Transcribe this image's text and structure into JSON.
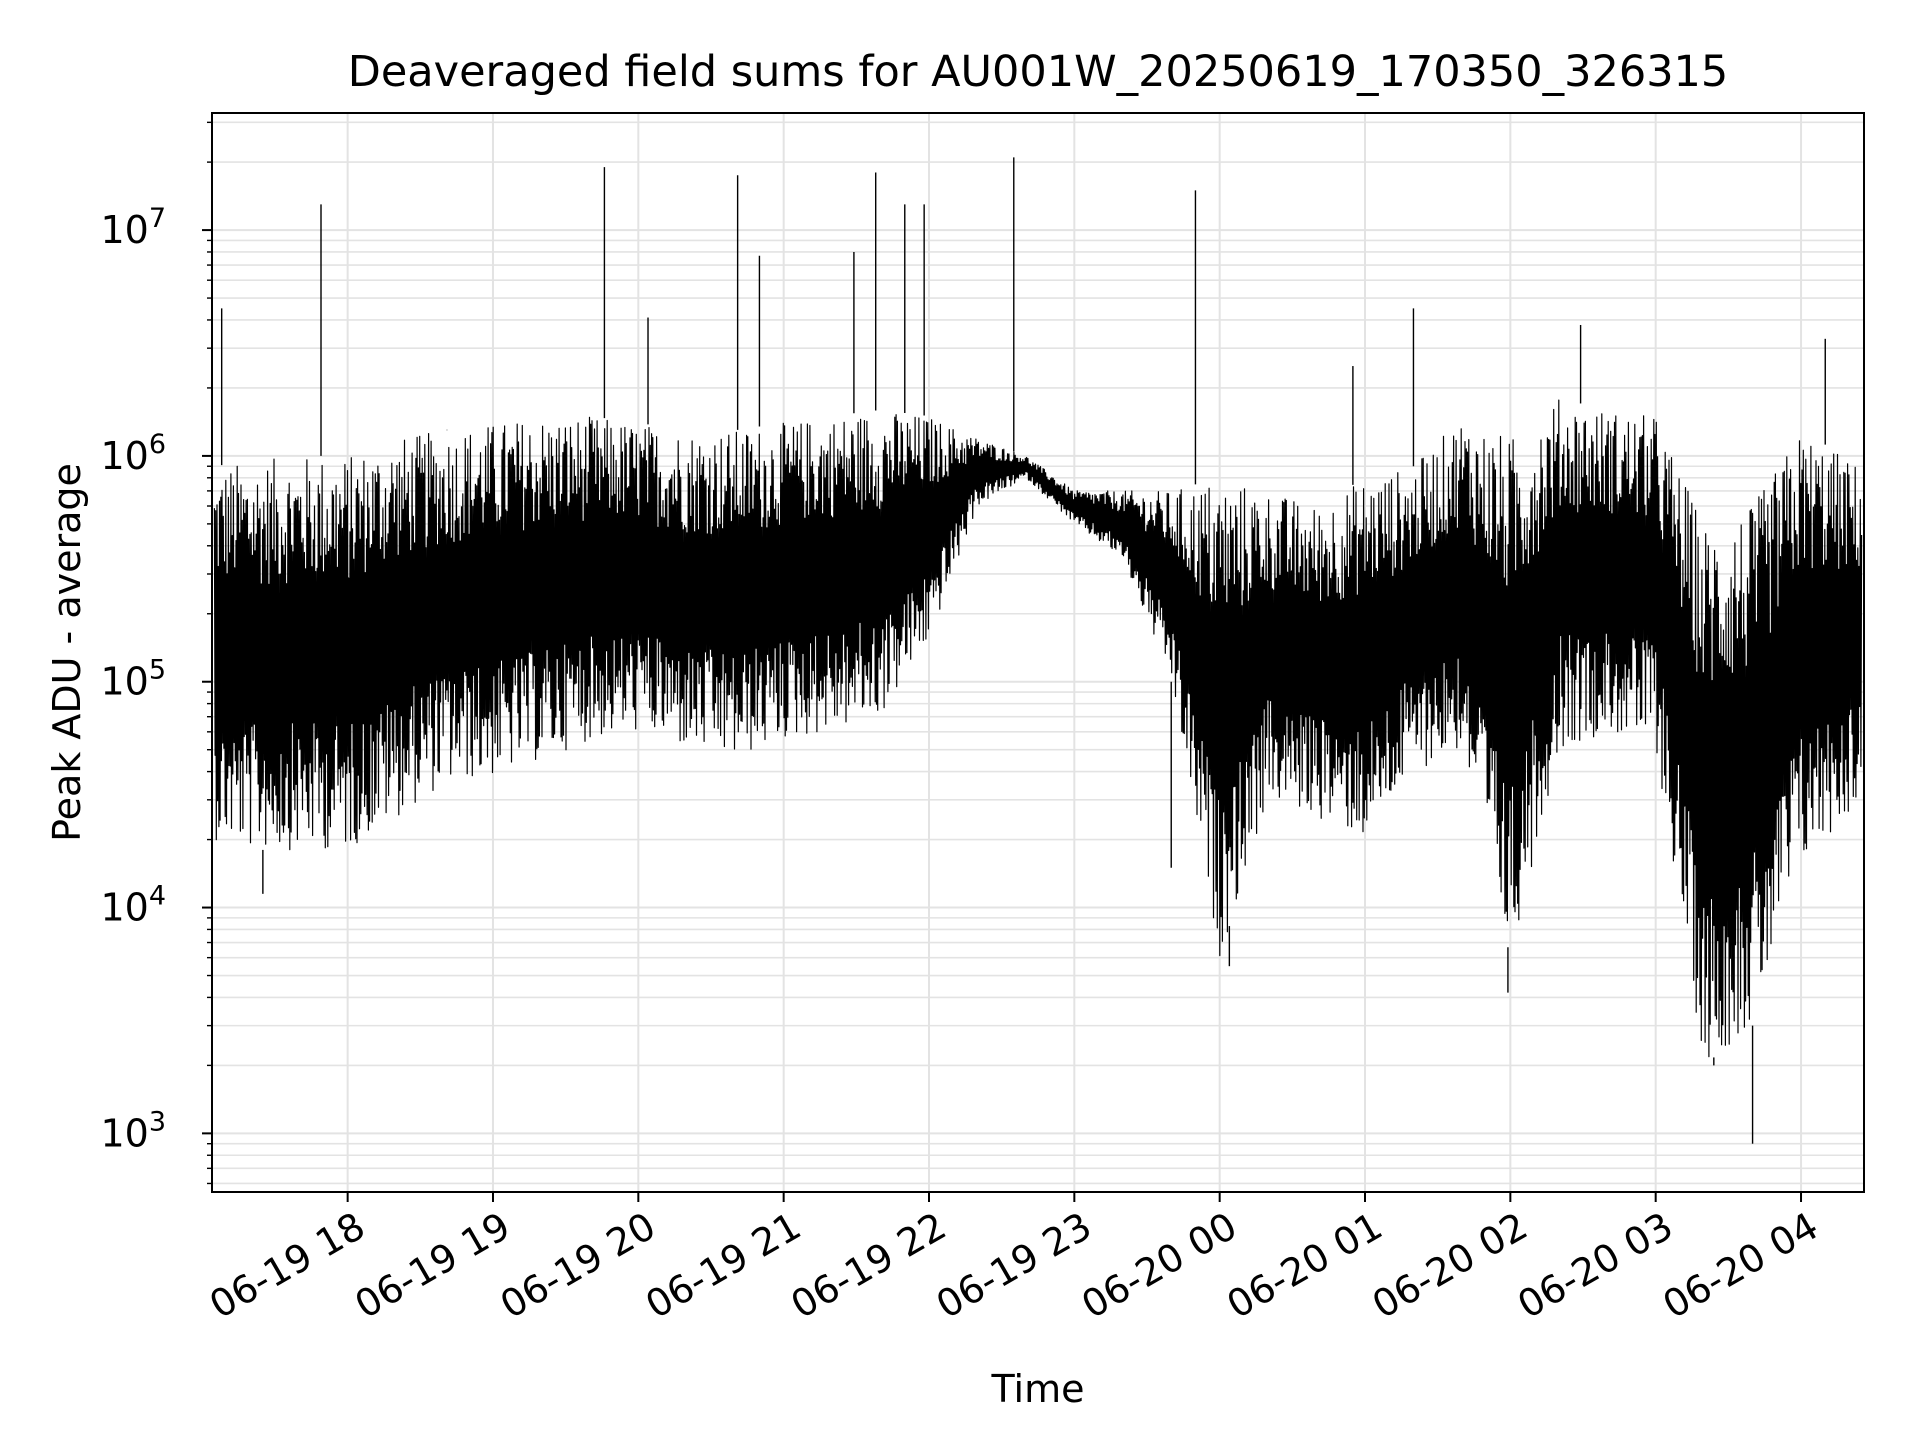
{
  "chart_data": {
    "type": "line",
    "title": "Deaveraged field sums for AU001W_20250619_170350_326315",
    "xlabel": "Time",
    "ylabel": "Peak ADU - average",
    "yscale": "log",
    "ylim": [
      550,
      33000000
    ],
    "xlim": [
      "06-19 17:04",
      "06-20 04:26"
    ],
    "grid": true,
    "x_ticks": [
      "06-19 18",
      "06-19 19",
      "06-19 20",
      "06-19 21",
      "06-19 22",
      "06-19 23",
      "06-20 00",
      "06-20 01",
      "06-20 02",
      "06-20 03",
      "06-20 04"
    ],
    "y_ticks": [
      {
        "value": 1000,
        "base": "10",
        "exp": "3"
      },
      {
        "value": 10000,
        "base": "10",
        "exp": "4"
      },
      {
        "value": 100000,
        "base": "10",
        "exp": "5"
      },
      {
        "value": 1000000,
        "base": "10",
        "exp": "6"
      },
      {
        "value": 10000000,
        "base": "10",
        "exp": "7"
      }
    ],
    "series": [
      {
        "color": "#000000",
        "x": [
          "06-19 17:05",
          "06-19 17:20",
          "06-19 17:40",
          "06-19 18:00",
          "06-19 18:20",
          "06-19 18:40",
          "06-19 19:00",
          "06-19 19:20",
          "06-19 19:40",
          "06-19 20:00",
          "06-19 20:20",
          "06-19 20:40",
          "06-19 21:00",
          "06-19 21:20",
          "06-19 21:40",
          "06-19 22:00",
          "06-19 22:20",
          "06-19 22:40",
          "06-19 23:00",
          "06-19 23:20",
          "06-19 23:40",
          "06-20 00:00",
          "06-20 00:20",
          "06-20 00:40",
          "06-20 01:00",
          "06-20 01:20",
          "06-20 01:40",
          "06-20 02:00",
          "06-20 02:20",
          "06-20 02:40",
          "06-20 03:00",
          "06-20 03:20",
          "06-20 03:40",
          "06-20 04:00",
          "06-20 04:25"
        ],
        "low": [
          20000,
          18000,
          18000,
          18000,
          25000,
          35000,
          38000,
          45000,
          55000,
          60000,
          50000,
          45000,
          55000,
          60000,
          70000,
          150000,
          600000,
          800000,
          500000,
          350000,
          100000,
          6000,
          30000,
          25000,
          20000,
          40000,
          50000,
          6000,
          50000,
          60000,
          50000,
          2000,
          3000,
          15000,
          30000
        ],
        "high": [
          900000,
          950000,
          1000000,
          1000000,
          1200000,
          1300000,
          1400000,
          1500000,
          1500000,
          1400000,
          1300000,
          1300000,
          1400000,
          1500000,
          1600000,
          1500000,
          1200000,
          1000000,
          700000,
          700000,
          700000,
          800000,
          700000,
          600000,
          800000,
          900000,
          1500000,
          1200000,
          1800000,
          1600000,
          1500000,
          500000,
          600000,
          1300000,
          900000
        ]
      }
    ],
    "peaks": [
      {
        "x": "06-19 17:08",
        "y": 4500000
      },
      {
        "x": "06-19 17:49",
        "y": 13000000
      },
      {
        "x": "06-19 18:41",
        "y": 1300000
      },
      {
        "x": "06-19 19:46",
        "y": 19000000
      },
      {
        "x": "06-19 20:04",
        "y": 4100000
      },
      {
        "x": "06-19 20:41",
        "y": 17500000
      },
      {
        "x": "06-19 20:50",
        "y": 7700000
      },
      {
        "x": "06-19 21:29",
        "y": 8000000
      },
      {
        "x": "06-19 21:38",
        "y": 18000000
      },
      {
        "x": "06-19 21:50",
        "y": 13000000
      },
      {
        "x": "06-19 21:58",
        "y": 13000000
      },
      {
        "x": "06-19 22:35",
        "y": 21000000
      },
      {
        "x": "06-19 23:50",
        "y": 15000000
      },
      {
        "x": "06-20 00:55",
        "y": 2500000
      },
      {
        "x": "06-20 01:20",
        "y": 4500000
      },
      {
        "x": "06-20 02:29",
        "y": 3800000
      },
      {
        "x": "06-20 04:10",
        "y": 3300000
      }
    ],
    "dips": [
      {
        "x": "06-19 17:25",
        "y": 11500
      },
      {
        "x": "06-19 23:40",
        "y": 15000
      },
      {
        "x": "06-20 00:04",
        "y": 5500
      },
      {
        "x": "06-20 01:59",
        "y": 4200
      },
      {
        "x": "06-20 03:24",
        "y": 2000
      },
      {
        "x": "06-20 03:40",
        "y": 900
      }
    ]
  }
}
